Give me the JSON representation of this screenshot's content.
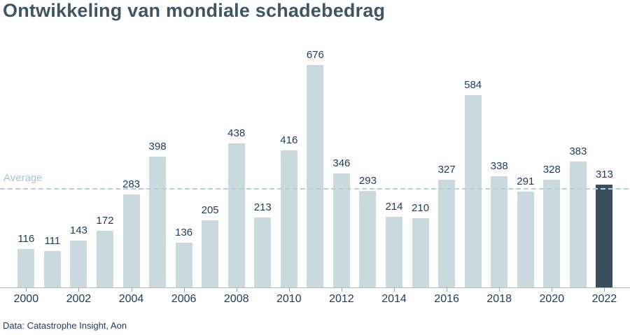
{
  "title": "Ontwikkeling van mondiale schadebedrag",
  "footer": "Data: Catastrophe Insight, Aon",
  "average_label": "Average",
  "colors": {
    "title": "#3e5565",
    "bar": "#c9d9dd",
    "highlight_bar": "#3c4e5b",
    "value_label": "#1b3a5f",
    "average_line": "#b9cfd7",
    "average_label": "#a6c3cd",
    "axis": "#afbdc3"
  },
  "chart_data": {
    "type": "bar",
    "title": "Ontwikkeling van mondiale schadebedrag",
    "xlabel": "",
    "ylabel": "",
    "categories": [
      2000,
      2001,
      2002,
      2003,
      2004,
      2005,
      2006,
      2007,
      2008,
      2009,
      2010,
      2011,
      2012,
      2013,
      2014,
      2015,
      2016,
      2017,
      2018,
      2019,
      2020,
      2021,
      2022
    ],
    "values": [
      116,
      111,
      143,
      172,
      283,
      398,
      136,
      205,
      438,
      213,
      416,
      676,
      346,
      293,
      214,
      210,
      327,
      584,
      338,
      291,
      328,
      383,
      313
    ],
    "x_tick_labels": [
      "2000",
      "2002",
      "2004",
      "2006",
      "2008",
      "2010",
      "2012",
      "2014",
      "2016",
      "2018",
      "2020",
      "2022"
    ],
    "average": 302,
    "average_label": "Average",
    "highlight_index": 22,
    "bar_color": "#c9d9dd",
    "highlight_color": "#3c4e5b",
    "ylim": [
      0,
      700
    ],
    "grid": false,
    "legend": "none",
    "annotations": "value labels above each bar; dashed horizontal average line"
  }
}
